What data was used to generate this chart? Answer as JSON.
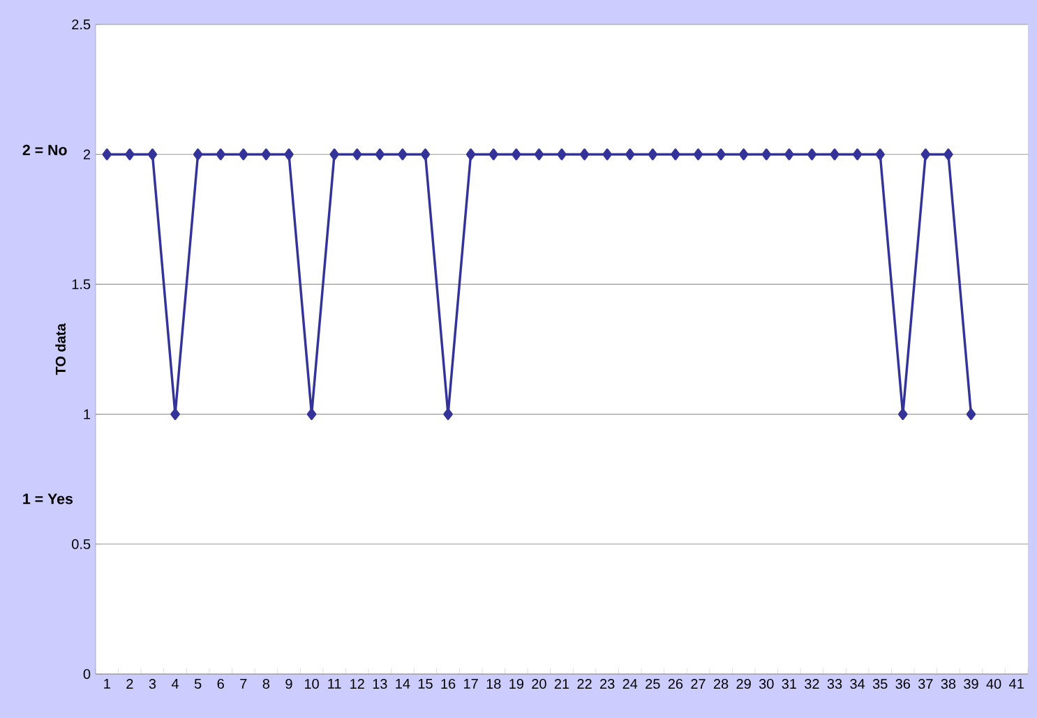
{
  "chart_data": {
    "type": "line",
    "ylabel": "TO data",
    "categories": [
      "1",
      "2",
      "3",
      "4",
      "5",
      "6",
      "7",
      "8",
      "9",
      "10",
      "11",
      "12",
      "13",
      "14",
      "15",
      "16",
      "17",
      "18",
      "19",
      "20",
      "21",
      "22",
      "23",
      "24",
      "25",
      "26",
      "27",
      "28",
      "29",
      "30",
      "31",
      "32",
      "33",
      "34",
      "35",
      "36",
      "37",
      "38",
      "39",
      "40",
      "41"
    ],
    "series": [
      {
        "color": "#333399",
        "values": [
          2,
          2,
          2,
          1,
          2,
          2,
          2,
          2,
          2,
          1,
          2,
          2,
          2,
          2,
          2,
          1,
          2,
          2,
          2,
          2,
          2,
          2,
          2,
          2,
          2,
          2,
          2,
          2,
          2,
          2,
          2,
          2,
          2,
          2,
          2,
          1,
          2,
          2,
          1,
          null,
          null
        ]
      }
    ],
    "ylim": [
      0,
      2.5
    ],
    "yticks": [
      0,
      0.5,
      1,
      1.5,
      2,
      2.5
    ],
    "grid": "y",
    "marker": "diamond",
    "line_style": "solid",
    "annotations": [
      "2 = No",
      "1 = Yes"
    ]
  }
}
